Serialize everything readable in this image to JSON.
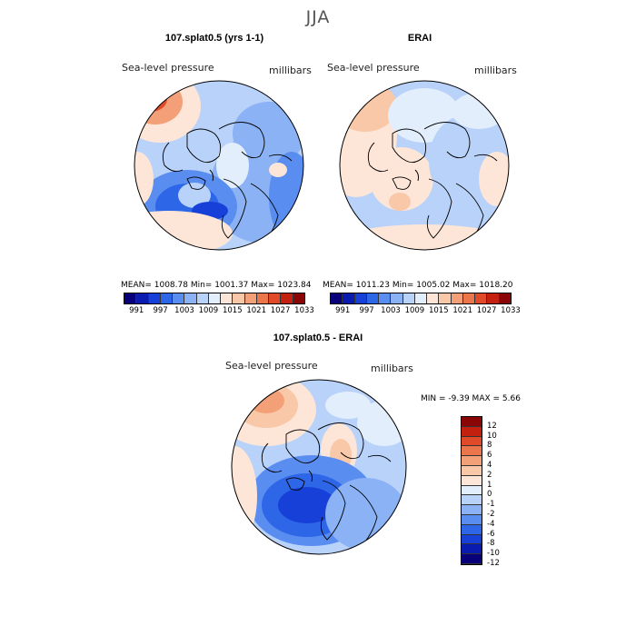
{
  "figure": {
    "season": "JJA"
  },
  "panels": [
    {
      "title": "107.splat0.5 (yrs 1-1)",
      "variable": "Sea-level pressure",
      "units": "millibars",
      "stats": "MEAN= 1008.78   Min= 1001.37   Max= 1023.84",
      "colorbar": {
        "colors": [
          "#08007a",
          "#0a1cb0",
          "#1640d8",
          "#2e66e8",
          "#5a8df0",
          "#8ab2f5",
          "#b8d2fa",
          "#e2eefc",
          "#fde6d8",
          "#f8c8a8",
          "#f3a078",
          "#ec764c",
          "#e04a28",
          "#c42010",
          "#8a0606"
        ],
        "labels": [
          "991",
          "997",
          "1003",
          "1009",
          "1015",
          "1021",
          "1027",
          "1033"
        ]
      }
    },
    {
      "title": "ERAI",
      "variable": "Sea-level pressure",
      "units": "millibars",
      "stats": "MEAN= 1011.23   Min= 1005.02   Max= 1018.20",
      "colorbar": {
        "colors": [
          "#08007a",
          "#0a1cb0",
          "#1640d8",
          "#2e66e8",
          "#5a8df0",
          "#8ab2f5",
          "#b8d2fa",
          "#e2eefc",
          "#fde6d8",
          "#f8c8a8",
          "#f3a078",
          "#ec764c",
          "#e04a28",
          "#c42010",
          "#8a0606"
        ],
        "labels": [
          "991",
          "997",
          "1003",
          "1009",
          "1015",
          "1021",
          "1027",
          "1033"
        ]
      }
    },
    {
      "title": "107.splat0.5 - ERAI",
      "variable": "Sea-level pressure",
      "units": "millibars",
      "stats": "MIN =   -9.39  MAX =    5.66",
      "colorbar": {
        "colors": [
          "#08007a",
          "#0a1cb0",
          "#1640d8",
          "#2e66e8",
          "#5a8df0",
          "#8ab2f5",
          "#b8d2fa",
          "#e2eefc",
          "#fde6d8",
          "#f8c8a8",
          "#f3a078",
          "#ec764c",
          "#e04a28",
          "#c42010",
          "#8a0606"
        ],
        "labels": [
          "12",
          "10",
          "8",
          "6",
          "4",
          "2",
          "1",
          "0",
          "-1",
          "-2",
          "-4",
          "-6",
          "-8",
          "-10",
          "-12"
        ]
      }
    }
  ]
}
